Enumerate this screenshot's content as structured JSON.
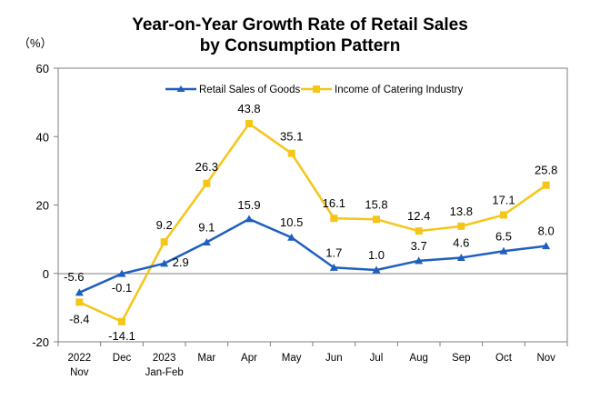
{
  "chart_data": {
    "type": "line",
    "title_line1": "Year-on-Year Growth Rate of Retail Sales",
    "title_line2": "by Consumption Pattern",
    "unit_label": "（%）",
    "categories": [
      [
        "2022",
        "Nov"
      ],
      [
        "Dec"
      ],
      [
        "2023",
        "Jan-Feb"
      ],
      [
        "Mar"
      ],
      [
        "Apr"
      ],
      [
        "May"
      ],
      [
        "Jun"
      ],
      [
        "Jul"
      ],
      [
        "Aug"
      ],
      [
        "Sep"
      ],
      [
        "Oct"
      ],
      [
        "Nov"
      ]
    ],
    "ylim": [
      -20,
      60
    ],
    "yticks": [
      -20,
      0,
      20,
      40,
      60
    ],
    "grid": false,
    "legend_position": "top",
    "series": [
      {
        "name": "Retail Sales of Goods",
        "color": "#1F5FBF",
        "marker": "triangle",
        "values": [
          -5.6,
          -0.1,
          2.9,
          9.1,
          15.9,
          10.5,
          1.7,
          1.0,
          3.7,
          4.6,
          6.5,
          8.0
        ],
        "labels": [
          "-5.6",
          "-0.1",
          "2.9",
          "9.1",
          "15.9",
          "10.5",
          "1.7",
          "1.0",
          "3.7",
          "4.6",
          "6.5",
          "8.0"
        ]
      },
      {
        "name": "Income of Catering Industry",
        "color": "#F5C518",
        "marker": "square",
        "values": [
          -8.4,
          -14.1,
          9.2,
          26.3,
          43.8,
          35.1,
          16.1,
          15.8,
          12.4,
          13.8,
          17.1,
          25.8
        ],
        "labels": [
          "-8.4",
          "-14.1",
          "9.2",
          "26.3",
          "43.8",
          "35.1",
          "16.1",
          "15.8",
          "12.4",
          "13.8",
          "17.1",
          "25.8"
        ]
      }
    ]
  }
}
